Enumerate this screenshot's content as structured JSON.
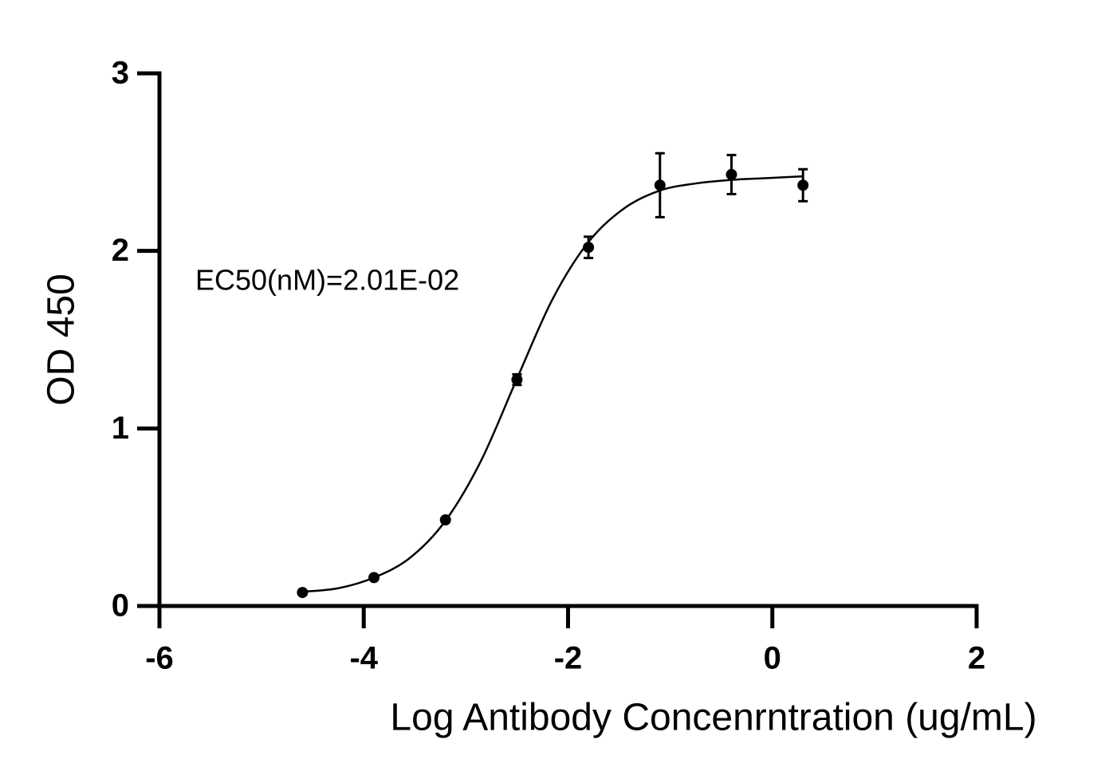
{
  "chart_data": {
    "type": "scatter",
    "ylabel": "OD 450",
    "xlabel": "Log Antibody Concenrntration (ug/mL)",
    "annotation": "EC50(nM)=2.01E-02",
    "xlim": [
      -6,
      2
    ],
    "xticks": [
      -6,
      -4,
      -2,
      0,
      2
    ],
    "ylim": [
      0,
      3
    ],
    "yticks": [
      0,
      1,
      2,
      3
    ],
    "color": "#000000",
    "series": [
      {
        "x": [
          -4.6,
          -3.9,
          -3.2,
          -2.5,
          -1.8,
          -1.1,
          -0.4,
          0.3
        ],
        "values": [
          0.076,
          0.16,
          0.485,
          1.275,
          2.02,
          2.37,
          2.43,
          2.37
        ],
        "errors": [
          0.01,
          0.01,
          0.01,
          0.03,
          0.06,
          0.18,
          0.11,
          0.09
        ]
      }
    ],
    "curve": {
      "x": [
        -4.6,
        -4.25,
        -3.9,
        -3.55,
        -3.2,
        -2.85,
        -2.5,
        -2.15,
        -1.8,
        -1.45,
        -1.1,
        -0.75,
        -0.4,
        -0.05,
        0.3
      ],
      "values": [
        0.08,
        0.1,
        0.16,
        0.27,
        0.48,
        0.82,
        1.28,
        1.73,
        2.05,
        2.24,
        2.34,
        2.38,
        2.4,
        2.41,
        2.42
      ]
    }
  }
}
